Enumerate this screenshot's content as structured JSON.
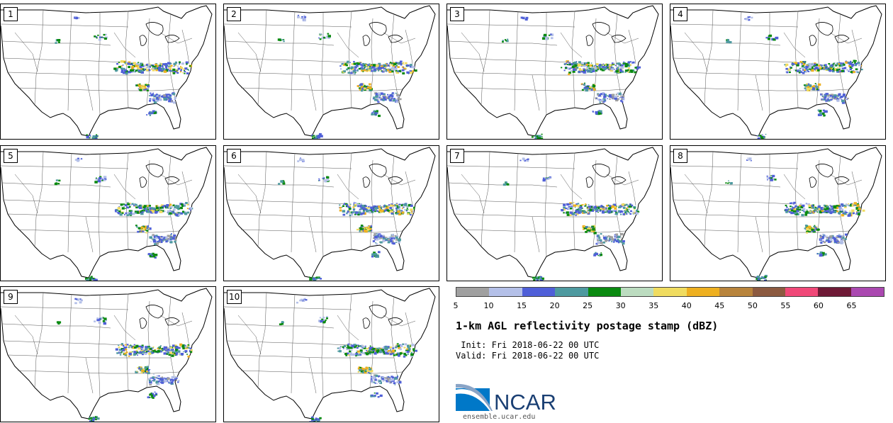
{
  "figure": {
    "title": "1-km AGL reflectivity postage stamp (dBZ)",
    "init": " Init: Fri 2018-06-22 00 UTC",
    "valid": "Valid: Fri 2018-06-22 00 UTC",
    "logo_text": "NCAR",
    "url": "ensemble.ucar.edu"
  },
  "members": [
    "1",
    "2",
    "3",
    "4",
    "5",
    "6",
    "7",
    "8",
    "9",
    "10"
  ],
  "colorbar": {
    "ticks": [
      "5",
      "10",
      "15",
      "20",
      "25",
      "30",
      "35",
      "40",
      "45",
      "50",
      "55",
      "60",
      "65"
    ],
    "colors": [
      "#a0a0a0",
      "#b4c0e8",
      "#4f5fd8",
      "#4e9aa0",
      "#0a8a10",
      "#bcdcc0",
      "#f0dc60",
      "#eeb020",
      "#b8843c",
      "#8c5a40",
      "#f04878",
      "#6e1a36",
      "#aa48b0"
    ]
  },
  "colors": {
    "border": "#000000",
    "state_lines": "#555555",
    "logo_blue": "#1a3f73"
  }
}
